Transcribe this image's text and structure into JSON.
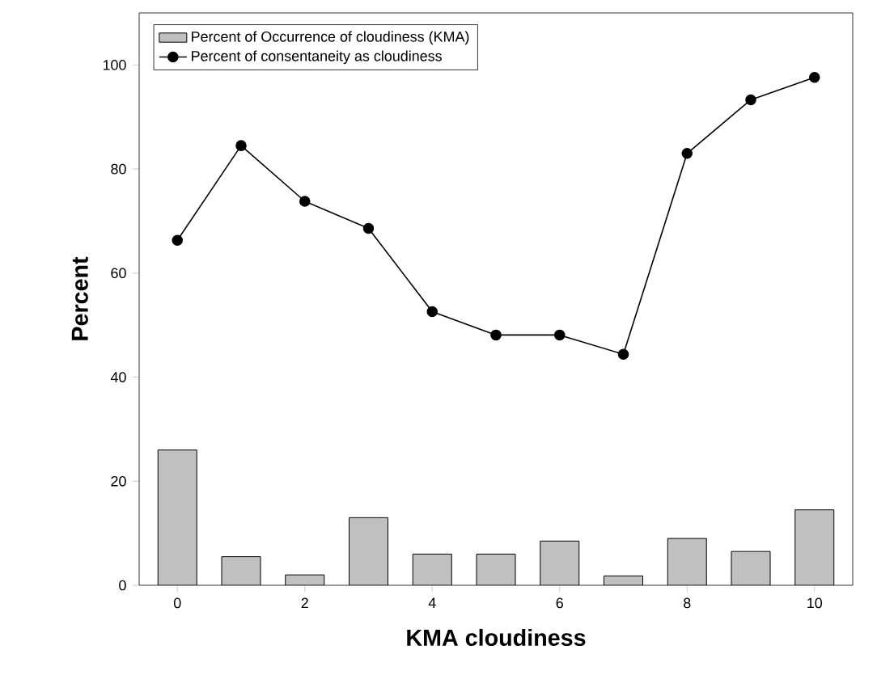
{
  "chart_data": {
    "type": "bar",
    "xlabel": "KMA cloudiness",
    "ylabel": "Percent",
    "x": [
      0,
      1,
      2,
      3,
      4,
      5,
      6,
      7,
      8,
      9,
      10
    ],
    "series": [
      {
        "name": "Percent of Occurrence of cloudiness (KMA)",
        "color": "#c0c0c0",
        "values": [
          26,
          5.5,
          2,
          13,
          6,
          6,
          8.5,
          1.8,
          9,
          6.5,
          14.5
        ]
      },
      {
        "name": "Percent of consentaneity as cloudiness",
        "type": "line",
        "color": "#000000",
        "marker": "circle",
        "values": [
          66.3,
          84.5,
          73.8,
          68.6,
          52.6,
          48.1,
          48.1,
          44.4,
          83,
          93.3,
          97.6
        ]
      }
    ],
    "xlim": [
      -0.6,
      10.6
    ],
    "ylim": [
      0,
      110
    ],
    "xticks": [
      0,
      2,
      4,
      6,
      8,
      10
    ],
    "yticks": [
      0,
      20,
      40,
      60,
      80,
      100
    ],
    "grid": false,
    "legend": "top left"
  }
}
